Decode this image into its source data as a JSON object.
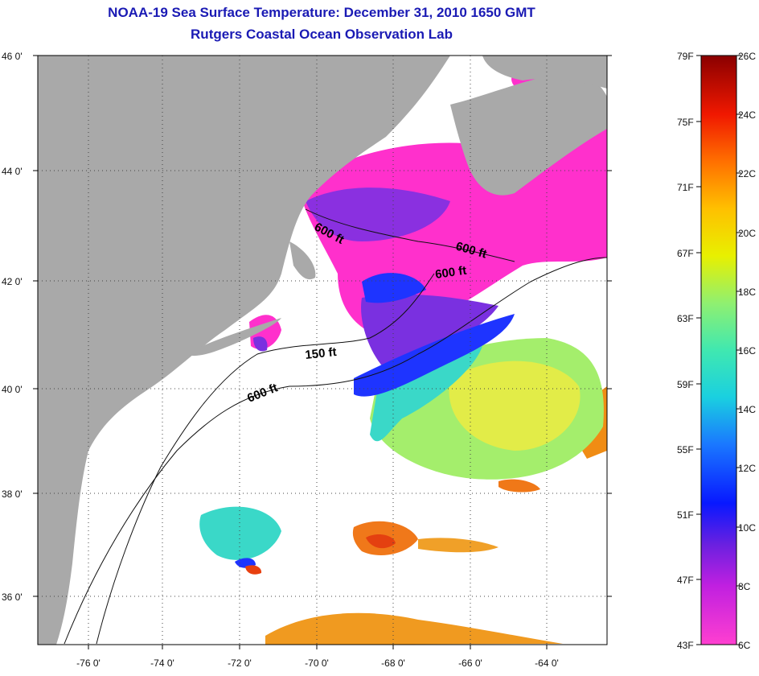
{
  "title": "NOAA-19 Sea Surface Temperature:  December 31, 2010 1650 GMT",
  "subtitle": "Rutgers Coastal Ocean Observation Lab",
  "axes": {
    "lat_labels": [
      "46 0'",
      "44 0'",
      "42 0'",
      "40 0'",
      "38 0'",
      "36 0'"
    ],
    "lon_labels": [
      "-76 0'",
      "-74 0'",
      "-72 0'",
      "-70 0'",
      "-68 0'",
      "-66 0'",
      "-64 0'"
    ]
  },
  "contour_labels": [
    {
      "text": "600 ft"
    },
    {
      "text": "600 ft"
    },
    {
      "text": "600 ft"
    },
    {
      "text": "150 ft"
    },
    {
      "text": "600 ft"
    }
  ],
  "colorbar": {
    "fahrenheit": [
      "79F",
      "75F",
      "71F",
      "67F",
      "63F",
      "59F",
      "55F",
      "51F",
      "47F",
      "43F"
    ],
    "celsius": [
      "26C",
      "24C",
      "22C",
      "20C",
      "18C",
      "16C",
      "14C",
      "12C",
      "10C",
      "8C",
      "6C"
    ]
  },
  "colors": {
    "land": "#a9a9a9",
    "ocean_nodata": "#ffffff",
    "cold": "#ff33cc",
    "violet": "#8a2be2",
    "blue": "#1e3cff",
    "cyan": "#34d6d6",
    "green": "#a0ee70",
    "yellow": "#e6ee40",
    "orange": "#f08c14",
    "red": "#e84010"
  }
}
